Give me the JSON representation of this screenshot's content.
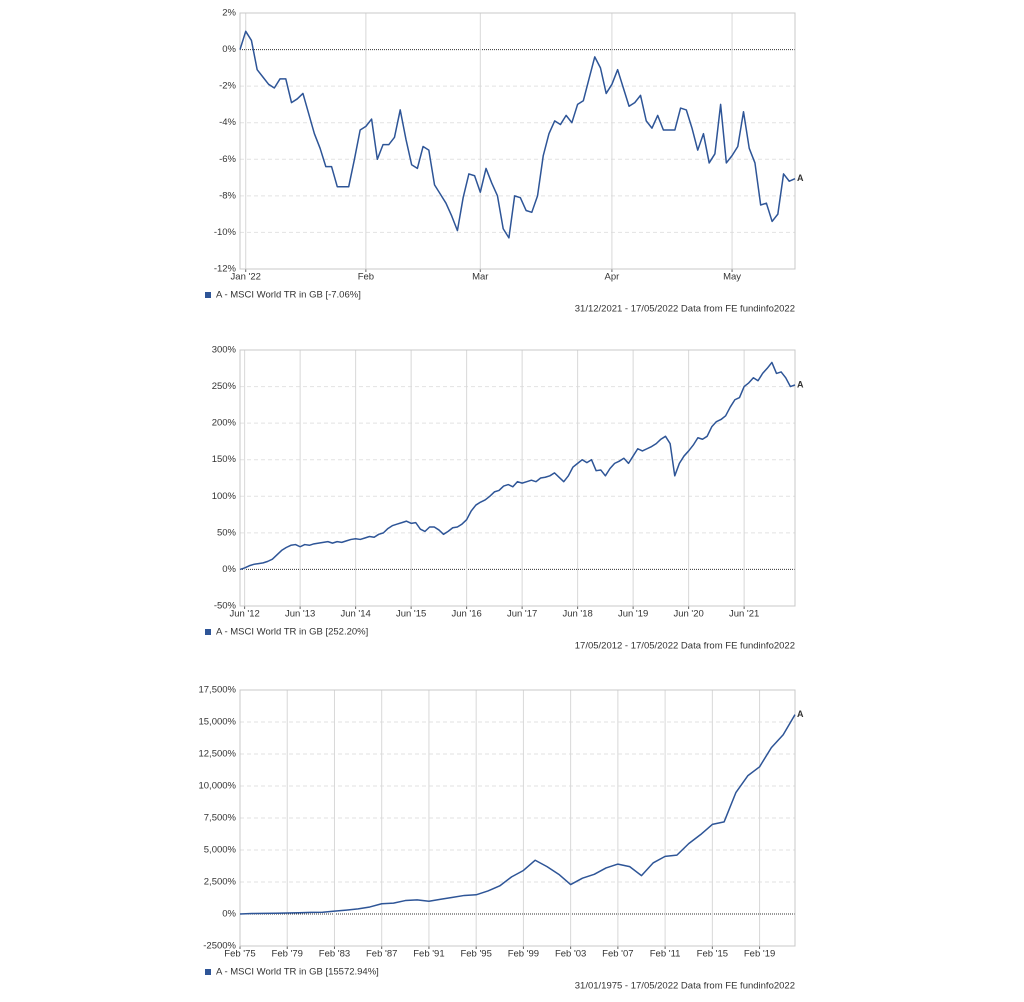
{
  "chart_data": [
    {
      "type": "line",
      "series": [
        {
          "name": "A - MSCI World TR in GB [-7.06%]",
          "color": "#2e5597",
          "values": [
            0,
            1.0,
            0.5,
            -1.1,
            -1.5,
            -1.9,
            -2.1,
            -1.6,
            -1.6,
            -2.9,
            -2.7,
            -2.4,
            -3.5,
            -4.6,
            -5.4,
            -6.4,
            -6.4,
            -7.5,
            -7.5,
            -7.5,
            -6.0,
            -4.4,
            -4.2,
            -3.8,
            -6.0,
            -5.2,
            -5.2,
            -4.8,
            -3.3,
            -4.9,
            -6.3,
            -6.5,
            -5.3,
            -5.5,
            -7.4,
            -7.9,
            -8.4,
            -9.1,
            -9.9,
            -8.1,
            -6.8,
            -6.9,
            -7.8,
            -6.5,
            -7.3,
            -8.0,
            -9.8,
            -10.3,
            -8.0,
            -8.1,
            -8.8,
            -8.9,
            -8.0,
            -5.8,
            -4.6,
            -3.9,
            -4.1,
            -3.6,
            -4.0,
            -3.0,
            -2.8,
            -1.6,
            -0.4,
            -1.0,
            -2.4,
            -1.9,
            -1.1,
            -2.1,
            -3.1,
            -2.9,
            -2.5,
            -3.9,
            -4.3,
            -3.6,
            -4.4,
            -4.4,
            -4.4,
            -3.2,
            -3.3,
            -4.3,
            -5.5,
            -4.6,
            -6.2,
            -5.7,
            -3.0,
            -6.2,
            -5.8,
            -5.3,
            -3.4,
            -5.4,
            -6.2,
            -8.5,
            -8.4,
            -9.4,
            -9.0,
            -6.8,
            -7.2,
            -7.06
          ]
        }
      ],
      "end_label": "A",
      "xlim": [
        0,
        97
      ],
      "xticks": [
        {
          "value": 1,
          "label": "Jan '22"
        },
        {
          "value": 22,
          "label": "Feb"
        },
        {
          "value": 42,
          "label": "Mar"
        },
        {
          "value": 65,
          "label": "Apr"
        },
        {
          "value": 86,
          "label": "May"
        }
      ],
      "ylim": [
        -12,
        2
      ],
      "yticks": [
        {
          "value": -12,
          "label": "-12%"
        },
        {
          "value": -10,
          "label": "-10%"
        },
        {
          "value": -8,
          "label": "-8%"
        },
        {
          "value": -6,
          "label": "-6%"
        },
        {
          "value": -4,
          "label": "-4%"
        },
        {
          "value": -2,
          "label": "-2%"
        },
        {
          "value": 0,
          "label": "0%"
        },
        {
          "value": 2,
          "label": "2%"
        }
      ],
      "grid": true,
      "footer": "31/12/2021 - 17/05/2022 Data from FE fundinfo2022"
    },
    {
      "type": "line",
      "series": [
        {
          "name": "A - MSCI World TR in GB [252.20%]",
          "color": "#2e5597",
          "values": [
            0,
            2,
            5,
            7,
            8,
            9,
            11,
            14,
            20,
            26,
            30,
            33,
            34,
            31,
            34,
            33,
            35,
            36,
            37,
            38,
            36,
            38,
            37,
            39,
            41,
            42,
            41,
            43,
            45,
            44,
            48,
            50,
            56,
            60,
            62,
            64,
            66,
            63,
            64,
            55,
            52,
            58,
            58,
            54,
            48,
            52,
            57,
            58,
            62,
            68,
            80,
            88,
            92,
            95,
            100,
            106,
            108,
            114,
            116,
            113,
            120,
            118,
            120,
            122,
            120,
            125,
            126,
            128,
            132,
            126,
            120,
            128,
            140,
            145,
            150,
            146,
            150,
            135,
            136,
            128,
            138,
            145,
            148,
            152,
            145,
            155,
            165,
            162,
            165,
            168,
            172,
            178,
            182,
            172,
            128,
            145,
            155,
            162,
            170,
            180,
            178,
            182,
            195,
            202,
            205,
            210,
            222,
            232,
            235,
            250,
            255,
            262,
            258,
            268,
            275,
            283,
            268,
            270,
            262,
            250,
            252.2
          ]
        }
      ],
      "end_label": "A",
      "xlim": [
        0,
        120
      ],
      "xticks": [
        {
          "value": 1,
          "label": "Jun '12"
        },
        {
          "value": 13,
          "label": "Jun '13"
        },
        {
          "value": 25,
          "label": "Jun '14"
        },
        {
          "value": 37,
          "label": "Jun '15"
        },
        {
          "value": 49,
          "label": "Jun '16"
        },
        {
          "value": 61,
          "label": "Jun '17"
        },
        {
          "value": 73,
          "label": "Jun '18"
        },
        {
          "value": 85,
          "label": "Jun '19"
        },
        {
          "value": 97,
          "label": "Jun '20"
        },
        {
          "value": 109,
          "label": "Jun '21"
        }
      ],
      "ylim": [
        -50,
        300
      ],
      "yticks": [
        {
          "value": -50,
          "label": "-50%"
        },
        {
          "value": 0,
          "label": "0%"
        },
        {
          "value": 50,
          "label": "50%"
        },
        {
          "value": 100,
          "label": "100%"
        },
        {
          "value": 150,
          "label": "150%"
        },
        {
          "value": 200,
          "label": "200%"
        },
        {
          "value": 250,
          "label": "250%"
        },
        {
          "value": 300,
          "label": "300%"
        }
      ],
      "grid": true,
      "footer": "17/05/2012 - 17/05/2022 Data from FE fundinfo2022"
    },
    {
      "type": "line",
      "series": [
        {
          "name": "A - MSCI World TR in GB [15572.94%]",
          "color": "#2e5597",
          "values": [
            0,
            40,
            50,
            60,
            80,
            100,
            130,
            140,
            220,
            300,
            400,
            550,
            800,
            850,
            1050,
            1100,
            1000,
            1150,
            1300,
            1450,
            1500,
            1800,
            2200,
            2900,
            3400,
            4200,
            3700,
            3100,
            2300,
            2800,
            3100,
            3600,
            3900,
            3700,
            3000,
            4000,
            4500,
            4600,
            5500,
            6200,
            7000,
            7200,
            9500,
            10800,
            11500,
            13000,
            14000,
            15572.94
          ]
        }
      ],
      "end_label": "A",
      "xlim": [
        0,
        47
      ],
      "xticks": [
        {
          "value": 0,
          "label": "Feb '75"
        },
        {
          "value": 4,
          "label": "Feb '79"
        },
        {
          "value": 8,
          "label": "Feb '83"
        },
        {
          "value": 12,
          "label": "Feb '87"
        },
        {
          "value": 16,
          "label": "Feb '91"
        },
        {
          "value": 20,
          "label": "Feb '95"
        },
        {
          "value": 24,
          "label": "Feb '99"
        },
        {
          "value": 28,
          "label": "Feb '03"
        },
        {
          "value": 32,
          "label": "Feb '07"
        },
        {
          "value": 36,
          "label": "Feb '11"
        },
        {
          "value": 40,
          "label": "Feb '15"
        },
        {
          "value": 44,
          "label": "Feb '19"
        }
      ],
      "ylim": [
        -2500,
        17500
      ],
      "yticks": [
        {
          "value": -2500,
          "label": "-2500%"
        },
        {
          "value": 0,
          "label": "0%"
        },
        {
          "value": 2500,
          "label": "2,500%"
        },
        {
          "value": 5000,
          "label": "5,000%"
        },
        {
          "value": 7500,
          "label": "7,500%"
        },
        {
          "value": 10000,
          "label": "10,000%"
        },
        {
          "value": 12500,
          "label": "12,500%"
        },
        {
          "value": 15000,
          "label": "15,000%"
        },
        {
          "value": 17500,
          "label": "17,500%"
        }
      ],
      "grid": true,
      "footer": "31/01/1975 - 17/05/2022 Data from FE fundinfo2022"
    }
  ]
}
